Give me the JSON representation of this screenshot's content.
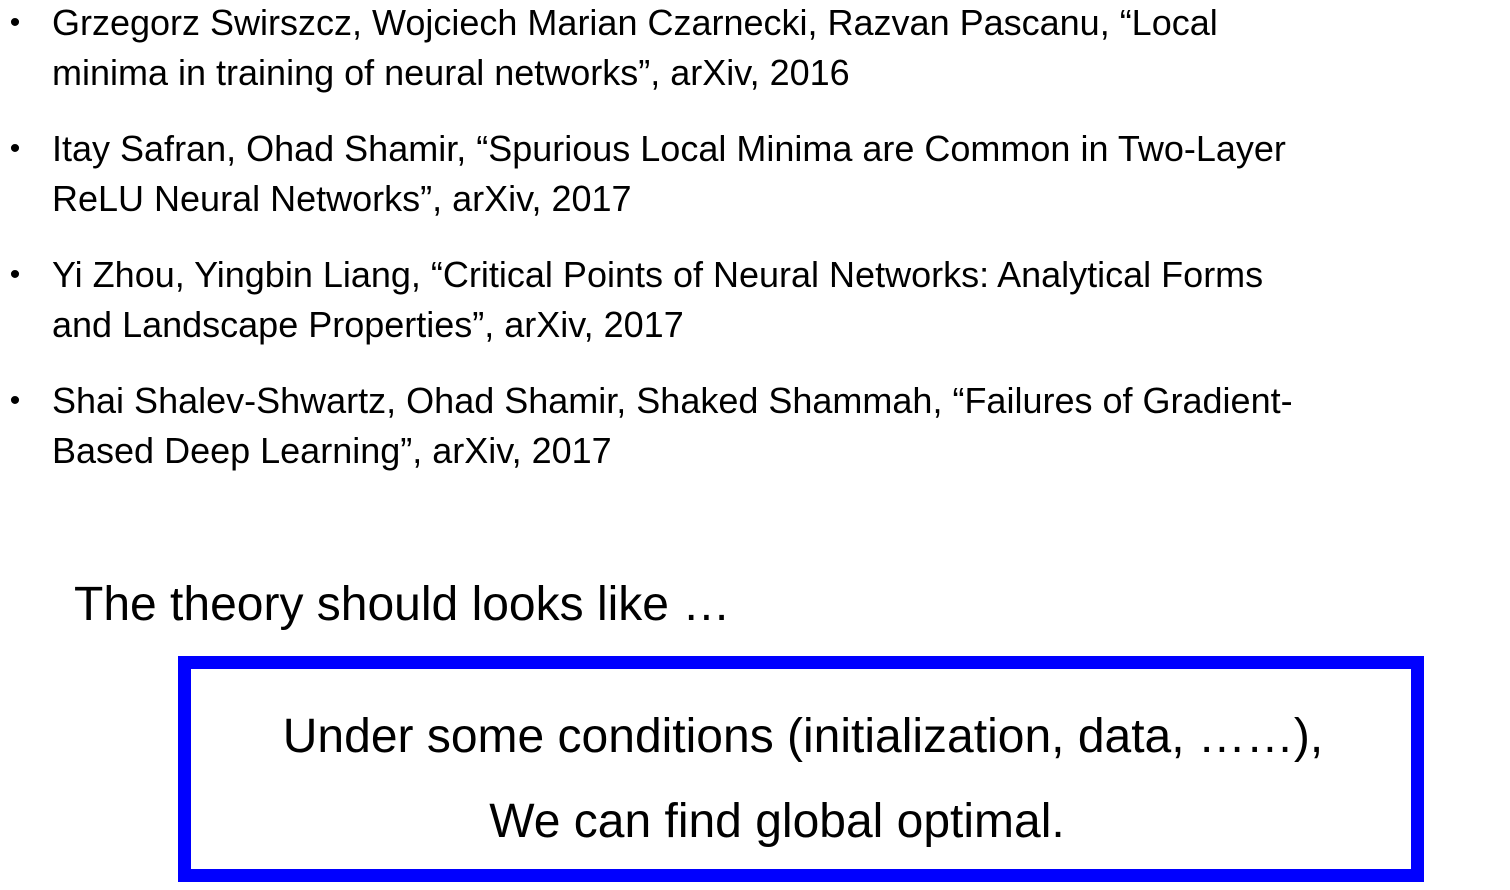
{
  "references": [
    {
      "line1": "Grzegorz Swirszcz, Wojciech Marian Czarnecki, Razvan Pascanu, “Local",
      "line2": "minima in training of neural networks”, arXiv, 2016"
    },
    {
      "line1": "Itay Safran, Ohad Shamir, “Spurious Local Minima are Common in Two-Layer",
      "line2": "ReLU Neural Networks”, arXiv, 2017"
    },
    {
      "line1": "Yi Zhou, Yingbin Liang, “Critical Points of Neural Networks: Analytical Forms",
      "line2": "and Landscape Properties”, arXiv, 2017"
    },
    {
      "line1": "Shai Shalev-Shwartz, Ohad Shamir, Shaked Shammah, “Failures of Gradient-",
      "line2": "Based Deep Learning”, arXiv, 2017"
    }
  ],
  "bullet_glyph": "•",
  "theory_heading": "The theory should looks like …",
  "box": {
    "line1": "Under some conditions (initialization, data, ……),",
    "line2": "We can find global optimal.",
    "border_color": "#0000ff"
  }
}
